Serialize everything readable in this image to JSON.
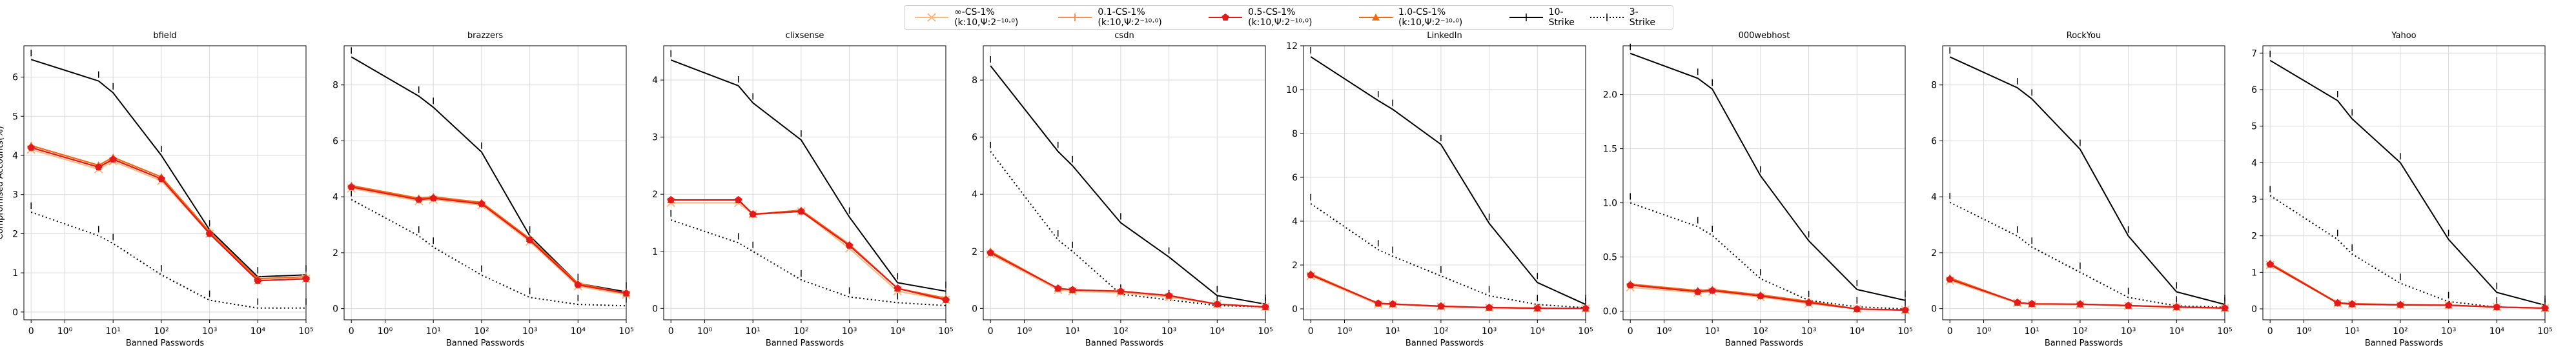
{
  "legend": [
    {
      "label": "∞-CS-1%(k:10,Ψ:2⁻¹⁰·⁰)",
      "color": "#fdbb84",
      "marker": "x",
      "dash": false
    },
    {
      "label": "0.1-CS-1%(k:10,Ψ:2⁻¹⁰·⁰)",
      "color": "#fc8d59",
      "marker": "plus",
      "dash": false
    },
    {
      "label": "0.5-CS-1%(k:10,Ψ:2⁻¹⁰·⁰)",
      "color": "#e31a1c",
      "marker": "pentagon",
      "dash": false
    },
    {
      "label": "1.0-CS-1%(k:10,Ψ:2⁻¹⁰·⁰)",
      "color": "#f16913",
      "marker": "triangle",
      "dash": false
    },
    {
      "label": "10-Strike",
      "color": "#000000",
      "marker": "tick",
      "dash": false
    },
    {
      "label": "3-Strike",
      "color": "#000000",
      "marker": "tick",
      "dash": true
    }
  ],
  "chart_data": [
    {
      "type": "line",
      "title": "bfield",
      "xlabel": "Banned Passwords",
      "ylabel": "Compromised Accounts(%)",
      "xscale": "symlog",
      "x": [
        0,
        5,
        10,
        100,
        1000,
        10000,
        100000
      ],
      "ylim": [
        -0.2,
        6.8
      ],
      "yticks": [
        0,
        1,
        2,
        3,
        4,
        5,
        6
      ],
      "series": [
        {
          "name": "∞-CS-1%(k:10,Ψ:2⁻¹⁰·⁰)",
          "values": [
            4.15,
            3.65,
            3.85,
            3.35,
            2.0,
            0.8,
            0.85
          ]
        },
        {
          "name": "0.1-CS-1%(k:10,Ψ:2⁻¹⁰·⁰)",
          "values": [
            4.2,
            3.7,
            3.9,
            3.4,
            2.0,
            0.8,
            0.85
          ]
        },
        {
          "name": "0.5-CS-1%(k:10,Ψ:2⁻¹⁰·⁰)",
          "values": [
            4.2,
            3.7,
            3.9,
            3.4,
            2.0,
            0.8,
            0.85
          ]
        },
        {
          "name": "1.0-CS-1%(k:10,Ψ:2⁻¹⁰·⁰)",
          "values": [
            4.25,
            3.75,
            3.95,
            3.45,
            2.05,
            0.85,
            0.9
          ]
        },
        {
          "name": "10-Strike",
          "values": [
            6.45,
            5.9,
            5.6,
            4.0,
            2.1,
            0.9,
            0.95
          ]
        },
        {
          "name": "3-Strike",
          "values": [
            2.55,
            1.95,
            1.75,
            0.95,
            0.3,
            0.1,
            0.1
          ]
        }
      ]
    },
    {
      "type": "line",
      "title": "brazzers",
      "xlabel": "Banned Passwords",
      "ylabel": "",
      "xscale": "symlog",
      "x": [
        0,
        5,
        10,
        100,
        1000,
        10000,
        100000
      ],
      "ylim": [
        -0.4,
        9.4
      ],
      "yticks": [
        0,
        2,
        4,
        6,
        8
      ],
      "series": [
        {
          "name": "∞-CS-1%",
          "values": [
            4.3,
            3.85,
            3.9,
            3.7,
            2.4,
            0.8,
            0.5
          ]
        },
        {
          "name": "0.1-CS-1%",
          "values": [
            4.35,
            3.9,
            3.95,
            3.75,
            2.45,
            0.85,
            0.55
          ]
        },
        {
          "name": "0.5-CS-1%",
          "values": [
            4.35,
            3.9,
            3.95,
            3.75,
            2.45,
            0.85,
            0.55
          ]
        },
        {
          "name": "1.0-CS-1%",
          "values": [
            4.4,
            3.95,
            4.0,
            3.8,
            2.5,
            0.9,
            0.55
          ]
        },
        {
          "name": "10-Strike",
          "values": [
            9.0,
            7.6,
            7.2,
            5.6,
            2.6,
            0.9,
            0.6
          ]
        },
        {
          "name": "3-Strike",
          "values": [
            3.9,
            2.6,
            2.2,
            1.2,
            0.4,
            0.15,
            0.1
          ]
        }
      ]
    },
    {
      "type": "line",
      "title": "clixsense",
      "xlabel": "Banned Passwords",
      "ylabel": "",
      "xscale": "symlog",
      "x": [
        0,
        5,
        10,
        100,
        1000,
        10000,
        100000
      ],
      "ylim": [
        -0.2,
        4.6
      ],
      "yticks": [
        0,
        1,
        2,
        3,
        4
      ],
      "series": [
        {
          "name": "∞-CS-1%",
          "values": [
            1.85,
            1.85,
            1.65,
            1.7,
            1.05,
            0.3,
            0.15
          ]
        },
        {
          "name": "0.1-CS-1%",
          "values": [
            1.9,
            1.9,
            1.65,
            1.7,
            1.1,
            0.35,
            0.15
          ]
        },
        {
          "name": "0.5-CS-1%",
          "values": [
            1.9,
            1.9,
            1.65,
            1.7,
            1.1,
            0.35,
            0.15
          ]
        },
        {
          "name": "1.0-CS-1%",
          "values": [
            1.9,
            1.9,
            1.65,
            1.72,
            1.12,
            0.35,
            0.18
          ]
        },
        {
          "name": "10-Strike",
          "values": [
            4.35,
            3.9,
            3.6,
            2.95,
            1.6,
            0.45,
            0.3
          ]
        },
        {
          "name": "3-Strike",
          "values": [
            1.55,
            1.15,
            1.0,
            0.5,
            0.2,
            0.1,
            0.05
          ]
        }
      ]
    },
    {
      "type": "line",
      "title": "csdn",
      "xlabel": "Banned Passwords",
      "ylabel": "",
      "xscale": "symlog",
      "x": [
        0,
        5,
        10,
        100,
        1000,
        10000,
        100000
      ],
      "ylim": [
        -0.4,
        9.2
      ],
      "yticks": [
        0,
        2,
        4,
        6,
        8
      ],
      "series": [
        {
          "name": "∞-CS-1%",
          "values": [
            1.9,
            0.65,
            0.6,
            0.55,
            0.4,
            0.15,
            0.05
          ]
        },
        {
          "name": "0.1-CS-1%",
          "values": [
            1.95,
            0.7,
            0.65,
            0.6,
            0.45,
            0.15,
            0.05
          ]
        },
        {
          "name": "0.5-CS-1%",
          "values": [
            1.95,
            0.7,
            0.65,
            0.6,
            0.45,
            0.15,
            0.05
          ]
        },
        {
          "name": "1.0-CS-1%",
          "values": [
            2.0,
            0.7,
            0.65,
            0.6,
            0.45,
            0.15,
            0.05
          ]
        },
        {
          "name": "10-Strike",
          "values": [
            8.5,
            5.5,
            5.0,
            3.0,
            1.8,
            0.45,
            0.15
          ]
        },
        {
          "name": "3-Strike",
          "values": [
            5.5,
            2.4,
            2.0,
            0.5,
            0.3,
            0.1,
            0.05
          ]
        }
      ]
    },
    {
      "type": "line",
      "title": "LinkedIn",
      "xlabel": "Banned Passwords",
      "ylabel": "",
      "xscale": "symlog",
      "x": [
        0,
        5,
        10,
        100,
        1000,
        10000,
        100000
      ],
      "ylim": [
        -0.5,
        12.0
      ],
      "yticks": [
        0,
        2,
        4,
        6,
        8,
        10,
        12
      ],
      "series": [
        {
          "name": "∞-CS-1%",
          "values": [
            1.5,
            0.2,
            0.2,
            0.1,
            0.05,
            0.03,
            0.02
          ]
        },
        {
          "name": "0.1-CS-1%",
          "values": [
            1.55,
            0.25,
            0.22,
            0.12,
            0.06,
            0.03,
            0.02
          ]
        },
        {
          "name": "0.5-CS-1%",
          "values": [
            1.55,
            0.25,
            0.22,
            0.12,
            0.06,
            0.03,
            0.02
          ]
        },
        {
          "name": "1.0-CS-1%",
          "values": [
            1.6,
            0.25,
            0.22,
            0.12,
            0.06,
            0.03,
            0.02
          ]
        },
        {
          "name": "10-Strike",
          "values": [
            11.5,
            9.5,
            9.1,
            7.5,
            3.9,
            1.2,
            0.2
          ]
        },
        {
          "name": "3-Strike",
          "values": [
            4.8,
            2.7,
            2.4,
            1.5,
            0.6,
            0.2,
            0.05
          ]
        }
      ]
    },
    {
      "type": "line",
      "title": "000webhost",
      "xlabel": "Banned Passwords",
      "ylabel": "",
      "xscale": "symlog",
      "x": [
        0,
        5,
        10,
        100,
        1000,
        10000,
        100000
      ],
      "ylim": [
        -0.08,
        2.45
      ],
      "yticks": [
        0.0,
        0.5,
        1.0,
        1.5,
        2.0
      ],
      "series": [
        {
          "name": "∞-CS-1%",
          "values": [
            0.22,
            0.17,
            0.18,
            0.13,
            0.07,
            0.02,
            0.01
          ]
        },
        {
          "name": "0.1-CS-1%",
          "values": [
            0.24,
            0.18,
            0.19,
            0.14,
            0.08,
            0.02,
            0.01
          ]
        },
        {
          "name": "0.5-CS-1%",
          "values": [
            0.24,
            0.18,
            0.19,
            0.14,
            0.08,
            0.02,
            0.01
          ]
        },
        {
          "name": "1.0-CS-1%",
          "values": [
            0.25,
            0.19,
            0.2,
            0.15,
            0.09,
            0.02,
            0.01
          ]
        },
        {
          "name": "10-Strike",
          "values": [
            2.38,
            2.15,
            2.05,
            1.25,
            0.65,
            0.2,
            0.1
          ]
        },
        {
          "name": "3-Strike",
          "values": [
            1.0,
            0.78,
            0.7,
            0.3,
            0.1,
            0.04,
            0.02
          ]
        }
      ]
    },
    {
      "type": "line",
      "title": "RockYou",
      "xlabel": "Banned Passwords",
      "ylabel": "",
      "xscale": "symlog",
      "x": [
        0,
        5,
        10,
        100,
        1000,
        10000,
        100000
      ],
      "ylim": [
        -0.4,
        9.4
      ],
      "yticks": [
        0,
        2,
        4,
        6,
        8
      ],
      "series": [
        {
          "name": "∞-CS-1%",
          "values": [
            1.0,
            0.2,
            0.15,
            0.15,
            0.1,
            0.05,
            0.02
          ]
        },
        {
          "name": "0.1-CS-1%",
          "values": [
            1.05,
            0.22,
            0.17,
            0.16,
            0.11,
            0.06,
            0.02
          ]
        },
        {
          "name": "0.5-CS-1%",
          "values": [
            1.05,
            0.22,
            0.17,
            0.16,
            0.11,
            0.06,
            0.02
          ]
        },
        {
          "name": "1.0-CS-1%",
          "values": [
            1.1,
            0.22,
            0.17,
            0.16,
            0.11,
            0.06,
            0.02
          ]
        },
        {
          "name": "10-Strike",
          "values": [
            9.0,
            7.9,
            7.5,
            5.7,
            2.6,
            0.6,
            0.15
          ]
        },
        {
          "name": "3-Strike",
          "values": [
            3.8,
            2.6,
            2.2,
            1.3,
            0.4,
            0.1,
            0.05
          ]
        }
      ]
    },
    {
      "type": "line",
      "title": "Yahoo",
      "xlabel": "Banned Passwords",
      "ylabel": "",
      "xscale": "symlog",
      "x": [
        0,
        5,
        10,
        100,
        1000,
        10000,
        100000
      ],
      "ylim": [
        -0.3,
        7.2
      ],
      "yticks": [
        0,
        1,
        2,
        3,
        4,
        5,
        6,
        7
      ],
      "series": [
        {
          "name": "∞-CS-1%",
          "values": [
            1.2,
            0.15,
            0.12,
            0.1,
            0.1,
            0.05,
            0.02
          ]
        },
        {
          "name": "0.1-CS-1%",
          "values": [
            1.22,
            0.16,
            0.13,
            0.11,
            0.1,
            0.05,
            0.02
          ]
        },
        {
          "name": "0.5-CS-1%",
          "values": [
            1.22,
            0.16,
            0.13,
            0.11,
            0.1,
            0.05,
            0.02
          ]
        },
        {
          "name": "1.0-CS-1%",
          "values": [
            1.25,
            0.17,
            0.14,
            0.12,
            0.1,
            0.05,
            0.02
          ]
        },
        {
          "name": "10-Strike",
          "values": [
            6.8,
            5.7,
            5.2,
            4.0,
            1.9,
            0.45,
            0.1
          ]
        },
        {
          "name": "3-Strike",
          "values": [
            3.1,
            1.9,
            1.5,
            0.7,
            0.2,
            0.05,
            0.02
          ]
        }
      ]
    }
  ],
  "xtick_labels": [
    "0",
    "10⁰",
    "10¹",
    "10²",
    "10³",
    "10⁴",
    "10⁵"
  ]
}
